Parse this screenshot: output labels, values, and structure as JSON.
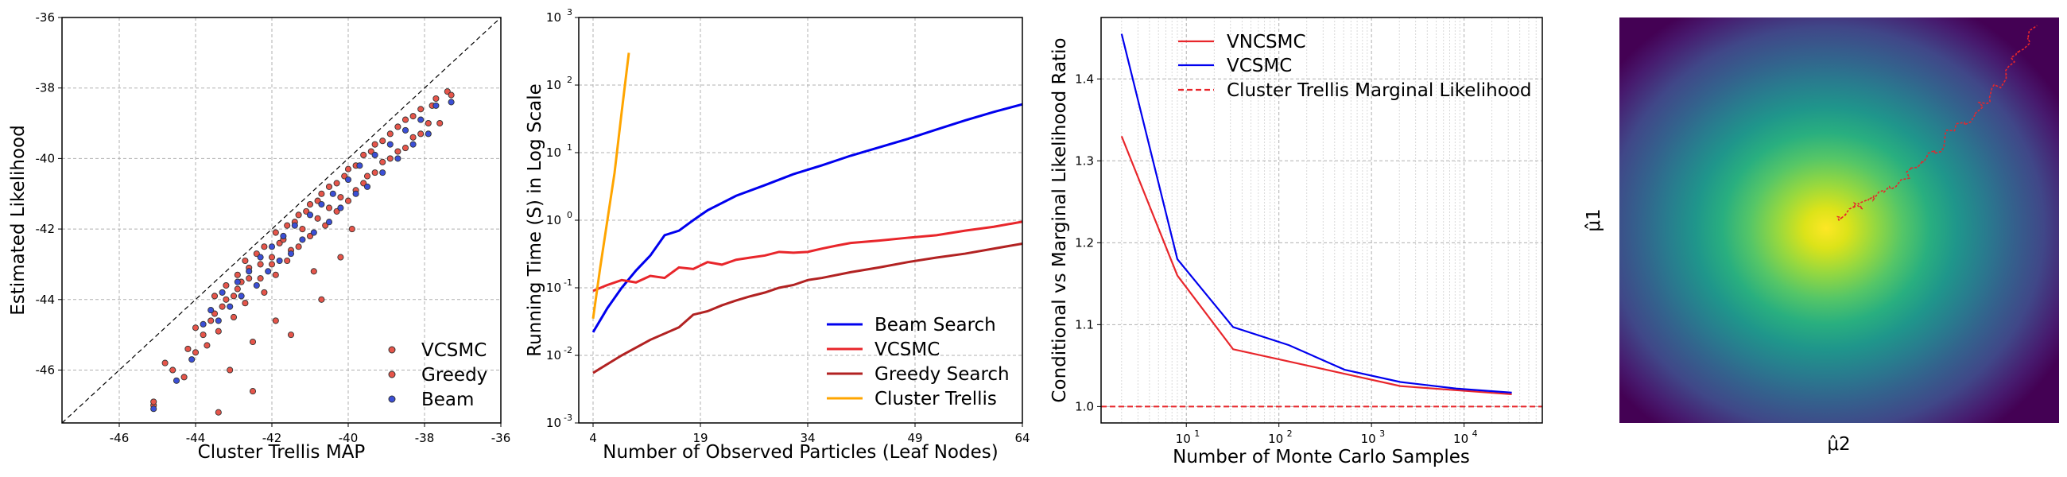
{
  "colors": {
    "vcsmc_red": "#e8262b",
    "greedy_red": "#b22222",
    "beam_blue": "#0000ee",
    "trellis_orange": "#ffa500",
    "dot_red": "#e6554a",
    "dot_blue": "#3b4fd6"
  },
  "chart_data": [
    {
      "type": "scatter",
      "xlabel": "Cluster Trellis MAP",
      "ylabel": "Estimated Likelihood",
      "xlim": [
        -47.5,
        -36
      ],
      "ylim": [
        -47.5,
        -36
      ],
      "xticks": [
        "-46",
        "-44",
        "-42",
        "-40",
        "-38",
        "-36"
      ],
      "yticks": [
        "-46",
        "-44",
        "-42",
        "-40",
        "-38",
        "-36"
      ],
      "grid": true,
      "diagonal": true,
      "legend_position": "lower-right",
      "legend": [
        "VCSMC",
        "Greedy",
        "Beam"
      ],
      "series": [
        {
          "name": "VCSMC",
          "points": [
            [
              -45.1,
              -47.0
            ],
            [
              -44.8,
              -45.8
            ],
            [
              -44.3,
              -46.2
            ],
            [
              -44.0,
              -45.5
            ],
            [
              -43.8,
              -45.0
            ],
            [
              -43.6,
              -44.6
            ],
            [
              -43.5,
              -43.9
            ],
            [
              -43.3,
              -44.2
            ],
            [
              -43.2,
              -43.6
            ],
            [
              -43.0,
              -43.9
            ],
            [
              -42.9,
              -43.3
            ],
            [
              -42.8,
              -43.5
            ],
            [
              -42.7,
              -42.9
            ],
            [
              -42.6,
              -43.1
            ],
            [
              -42.4,
              -42.7
            ],
            [
              -42.3,
              -43.4
            ],
            [
              -42.2,
              -42.5
            ],
            [
              -42.0,
              -43.0
            ],
            [
              -41.9,
              -42.1
            ],
            [
              -41.8,
              -42.4
            ],
            [
              -41.6,
              -41.9
            ],
            [
              -41.5,
              -42.6
            ],
            [
              -41.3,
              -41.6
            ],
            [
              -41.2,
              -42.0
            ],
            [
              -41.0,
              -41.3
            ],
            [
              -40.8,
              -41.7
            ],
            [
              -40.7,
              -41.0
            ],
            [
              -40.5,
              -41.4
            ],
            [
              -40.3,
              -40.7
            ],
            [
              -40.2,
              -41.1
            ],
            [
              -40.0,
              -40.3
            ],
            [
              -39.8,
              -40.9
            ],
            [
              -39.6,
              -39.9
            ],
            [
              -39.5,
              -40.5
            ],
            [
              -39.3,
              -39.6
            ],
            [
              -39.1,
              -40.1
            ],
            [
              -38.9,
              -39.3
            ],
            [
              -38.7,
              -39.8
            ],
            [
              -38.5,
              -38.9
            ],
            [
              -38.3,
              -39.4
            ],
            [
              -38.1,
              -38.6
            ],
            [
              -37.9,
              -39.0
            ],
            [
              -37.7,
              -38.3
            ],
            [
              -37.4,
              -38.1
            ],
            [
              -43.1,
              -46.0
            ],
            [
              -42.5,
              -45.2
            ],
            [
              -41.9,
              -44.6
            ],
            [
              -40.9,
              -43.2
            ],
            [
              -40.2,
              -42.8
            ]
          ]
        },
        {
          "name": "Greedy",
          "points": [
            [
              -45.1,
              -46.9
            ],
            [
              -44.6,
              -46.0
            ],
            [
              -44.2,
              -45.4
            ],
            [
              -44.0,
              -44.8
            ],
            [
              -43.7,
              -45.3
            ],
            [
              -43.5,
              -44.4
            ],
            [
              -43.4,
              -44.9
            ],
            [
              -43.2,
              -44.0
            ],
            [
              -43.0,
              -44.5
            ],
            [
              -42.9,
              -43.7
            ],
            [
              -42.7,
              -44.1
            ],
            [
              -42.6,
              -43.4
            ],
            [
              -42.5,
              -46.6
            ],
            [
              -42.3,
              -43.0
            ],
            [
              -42.2,
              -43.8
            ],
            [
              -42.0,
              -42.8
            ],
            [
              -41.9,
              -43.3
            ],
            [
              -41.7,
              -42.3
            ],
            [
              -41.6,
              -42.9
            ],
            [
              -41.4,
              -41.8
            ],
            [
              -41.3,
              -42.5
            ],
            [
              -41.1,
              -41.5
            ],
            [
              -41.0,
              -42.2
            ],
            [
              -40.8,
              -41.2
            ],
            [
              -40.6,
              -41.9
            ],
            [
              -40.5,
              -40.8
            ],
            [
              -40.3,
              -41.5
            ],
            [
              -40.1,
              -40.5
            ],
            [
              -40.0,
              -41.2
            ],
            [
              -39.8,
              -40.2
            ],
            [
              -39.6,
              -40.7
            ],
            [
              -39.4,
              -39.8
            ],
            [
              -39.3,
              -40.4
            ],
            [
              -39.1,
              -39.5
            ],
            [
              -38.9,
              -40.0
            ],
            [
              -38.7,
              -39.1
            ],
            [
              -38.5,
              -39.7
            ],
            [
              -38.3,
              -38.8
            ],
            [
              -38.1,
              -39.3
            ],
            [
              -37.8,
              -38.5
            ],
            [
              -37.6,
              -39.0
            ],
            [
              -37.3,
              -38.2
            ],
            [
              -43.4,
              -47.2
            ],
            [
              -41.5,
              -45.0
            ],
            [
              -40.7,
              -44.0
            ],
            [
              -39.9,
              -42.0
            ]
          ]
        },
        {
          "name": "Beam",
          "points": [
            [
              -45.1,
              -47.1
            ],
            [
              -44.5,
              -46.3
            ],
            [
              -44.1,
              -45.7
            ],
            [
              -43.8,
              -44.7
            ],
            [
              -43.6,
              -44.3
            ],
            [
              -43.4,
              -44.6
            ],
            [
              -43.3,
              -43.8
            ],
            [
              -43.1,
              -44.2
            ],
            [
              -42.9,
              -43.5
            ],
            [
              -42.8,
              -43.9
            ],
            [
              -42.6,
              -43.2
            ],
            [
              -42.4,
              -43.6
            ],
            [
              -42.3,
              -42.8
            ],
            [
              -42.1,
              -43.2
            ],
            [
              -42.0,
              -42.5
            ],
            [
              -41.8,
              -42.9
            ],
            [
              -41.7,
              -42.2
            ],
            [
              -41.5,
              -42.7
            ],
            [
              -41.4,
              -41.9
            ],
            [
              -41.2,
              -42.3
            ],
            [
              -41.0,
              -41.6
            ],
            [
              -40.9,
              -42.1
            ],
            [
              -40.7,
              -41.3
            ],
            [
              -40.5,
              -41.8
            ],
            [
              -40.4,
              -41.0
            ],
            [
              -40.2,
              -41.4
            ],
            [
              -40.0,
              -40.6
            ],
            [
              -39.8,
              -41.0
            ],
            [
              -39.7,
              -40.2
            ],
            [
              -39.5,
              -40.8
            ],
            [
              -39.3,
              -39.9
            ],
            [
              -39.1,
              -40.4
            ],
            [
              -38.9,
              -39.6
            ],
            [
              -38.7,
              -40.0
            ],
            [
              -38.5,
              -39.2
            ],
            [
              -38.3,
              -39.6
            ],
            [
              -38.1,
              -38.9
            ],
            [
              -37.9,
              -39.3
            ],
            [
              -37.7,
              -38.5
            ],
            [
              -37.3,
              -38.4
            ]
          ]
        }
      ]
    },
    {
      "type": "line",
      "yscale": "log",
      "xlabel": "Number of Observed Particles (Leaf Nodes)",
      "ylabel": "Running Time (S) in Log Scale",
      "xlim": [
        2,
        64
      ],
      "ylim": [
        0.001,
        1000
      ],
      "xticks": [
        "4",
        "19",
        "34",
        "49",
        "64"
      ],
      "yticks": [
        "10^-3",
        "10^-2",
        "10^-1",
        "10^0",
        "10^1",
        "10^2",
        "10^3"
      ],
      "grid": true,
      "legend_position": "lower-right",
      "series": [
        {
          "name": "Beam Search",
          "x": [
            4,
            6,
            8,
            10,
            12,
            14,
            16,
            18,
            20,
            24,
            28,
            32,
            36,
            40,
            44,
            48,
            52,
            56,
            60,
            64
          ],
          "y": [
            0.022,
            0.05,
            0.1,
            0.18,
            0.3,
            0.6,
            0.7,
            1.0,
            1.4,
            2.3,
            3.3,
            4.8,
            6.5,
            9,
            12,
            16,
            22,
            30,
            40,
            52
          ]
        },
        {
          "name": "VCSMC",
          "x": [
            4,
            6,
            8,
            10,
            12,
            14,
            16,
            18,
            20,
            22,
            24,
            26,
            28,
            30,
            32,
            34,
            36,
            38,
            40,
            44,
            48,
            52,
            56,
            60,
            64
          ],
          "y": [
            0.09,
            0.11,
            0.13,
            0.12,
            0.15,
            0.14,
            0.2,
            0.19,
            0.24,
            0.22,
            0.26,
            0.28,
            0.3,
            0.34,
            0.33,
            0.34,
            0.38,
            0.42,
            0.46,
            0.5,
            0.55,
            0.6,
            0.7,
            0.8,
            0.95
          ]
        },
        {
          "name": "Greedy Search",
          "x": [
            4,
            8,
            12,
            16,
            18,
            20,
            22,
            24,
            26,
            28,
            30,
            32,
            34,
            36,
            40,
            44,
            48,
            52,
            56,
            60,
            64
          ],
          "y": [
            0.0055,
            0.01,
            0.017,
            0.026,
            0.04,
            0.045,
            0.055,
            0.065,
            0.075,
            0.085,
            0.1,
            0.11,
            0.13,
            0.14,
            0.17,
            0.2,
            0.24,
            0.28,
            0.32,
            0.38,
            0.45
          ]
        },
        {
          "name": "Cluster Trellis",
          "x": [
            4,
            5,
            6,
            7,
            8,
            9
          ],
          "y": [
            0.035,
            0.2,
            1.0,
            5.0,
            40,
            300
          ]
        }
      ]
    },
    {
      "type": "line",
      "xscale": "log",
      "xlabel": "Number of Monte Carlo Samples",
      "ylabel": "Conditional vs Marginal Likelihood Ratio",
      "xlim": [
        1.2,
        70000
      ],
      "ylim": [
        0.98,
        1.475
      ],
      "xticks": [
        "10^1",
        "10^2",
        "10^3",
        "10^4"
      ],
      "yticks": [
        "1.0",
        "1.1",
        "1.2",
        "1.3",
        "1.4"
      ],
      "grid": true,
      "legend_position": "upper-right",
      "series": [
        {
          "name": "VNCSMC",
          "x": [
            2,
            8,
            32,
            128,
            512,
            2048,
            8192,
            32768
          ],
          "y": [
            1.33,
            1.16,
            1.07,
            1.055,
            1.04,
            1.025,
            1.02,
            1.015
          ]
        },
        {
          "name": "VCSMC",
          "x": [
            2,
            8,
            32,
            128,
            512,
            2048,
            8192,
            32768
          ],
          "y": [
            1.455,
            1.18,
            1.097,
            1.075,
            1.045,
            1.03,
            1.022,
            1.017
          ]
        },
        {
          "name": "Cluster Trellis Marginal Likelihood",
          "hline": 1.0
        }
      ]
    },
    {
      "type": "heatmap",
      "xlabel": "μ̂2",
      "ylabel": "μ̂1",
      "description": "Gaussian density with a random-walk trace",
      "trace": [
        [
          0.5,
          0.5
        ],
        [
          0.52,
          0.48
        ],
        [
          0.55,
          0.46
        ],
        [
          0.6,
          0.43
        ],
        [
          0.65,
          0.4
        ],
        [
          0.68,
          0.36
        ],
        [
          0.72,
          0.33
        ],
        [
          0.75,
          0.28
        ],
        [
          0.8,
          0.25
        ],
        [
          0.84,
          0.2
        ],
        [
          0.88,
          0.15
        ],
        [
          0.9,
          0.1
        ],
        [
          0.93,
          0.06
        ],
        [
          0.95,
          0.02
        ]
      ]
    }
  ]
}
